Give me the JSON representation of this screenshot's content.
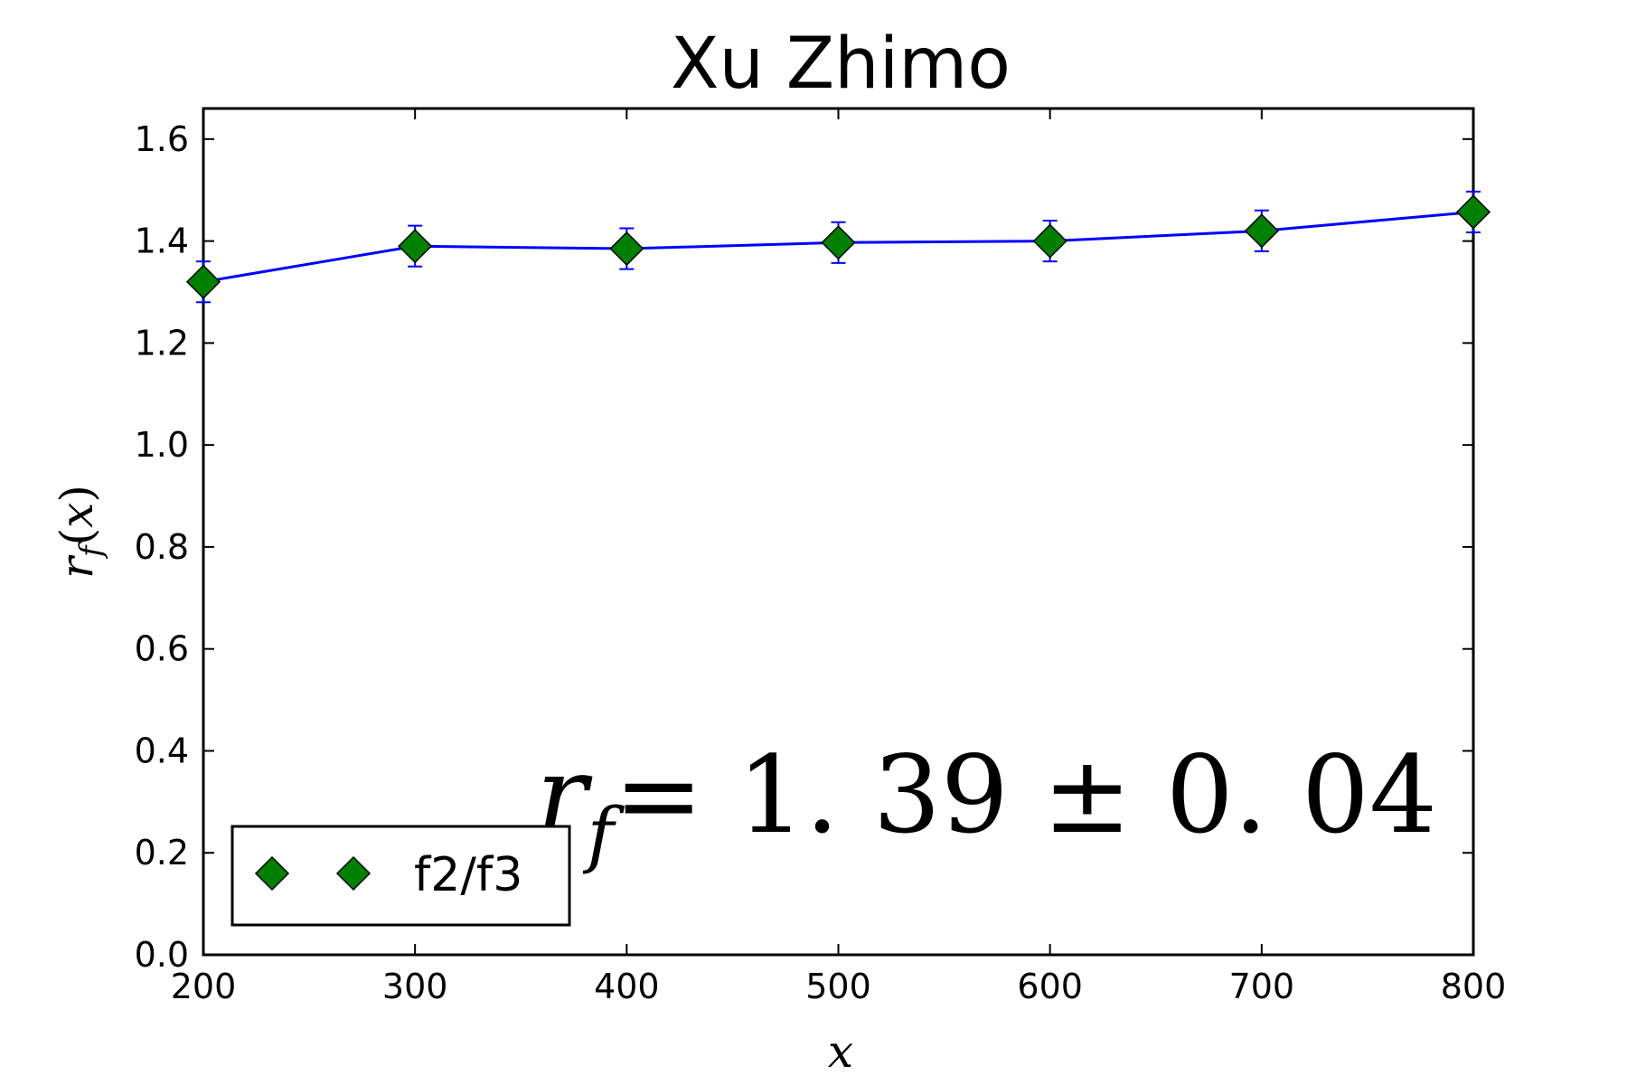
{
  "chart_data": {
    "type": "line",
    "title": "Xu Zhimo",
    "xlabel": "x",
    "ylabel": "r_f(x)",
    "xlim": [
      200,
      800
    ],
    "ylim": [
      0.0,
      1.66
    ],
    "xticks": [
      200,
      300,
      400,
      500,
      600,
      700,
      800
    ],
    "yticks": [
      0.0,
      0.2,
      0.4,
      0.6,
      0.8,
      1.0,
      1.2,
      1.4,
      1.6
    ],
    "xtick_labels": [
      "200",
      "300",
      "400",
      "500",
      "600",
      "700",
      "800"
    ],
    "ytick_labels": [
      "0.0",
      "0.2",
      "0.4",
      "0.6",
      "0.8",
      "1.0",
      "1.2",
      "1.4",
      "1.6"
    ],
    "x": [
      200,
      300,
      400,
      500,
      600,
      700,
      800
    ],
    "series": [
      {
        "name": "f2/f3",
        "values": [
          1.32,
          1.39,
          1.385,
          1.397,
          1.4,
          1.42,
          1.457
        ],
        "errors": [
          0.04,
          0.04,
          0.04,
          0.04,
          0.04,
          0.04,
          0.04
        ],
        "line_color": "#0000ff",
        "marker": "diamond",
        "marker_color": "#008000"
      }
    ],
    "annotation": {
      "lhs": "r",
      "sub": "f",
      "rhs": "= 1. 39 ± 0. 04"
    },
    "legend": {
      "placement": "lower-left",
      "label": "f2/f3"
    },
    "grid": false
  }
}
